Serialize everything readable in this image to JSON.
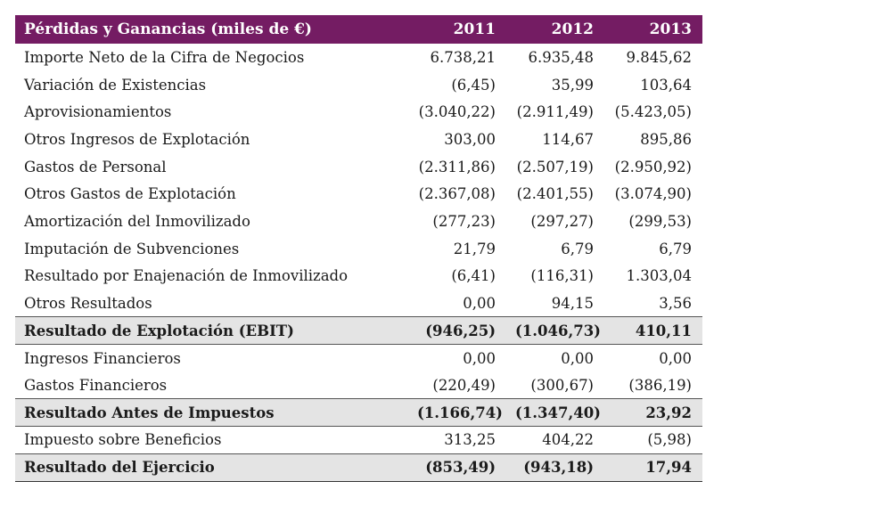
{
  "table": {
    "header": {
      "label": "Pérdidas y Ganancias (miles de €)",
      "years": [
        "2011",
        "2012",
        "2013"
      ]
    },
    "rows": [
      {
        "label": "Importe Neto de la Cifra de Negocios",
        "values": [
          "6.738,21",
          "6.935,48",
          "9.845,62"
        ],
        "total": false
      },
      {
        "label": "Variación de Existencias",
        "values": [
          "(6,45)",
          "35,99",
          "103,64"
        ],
        "total": false
      },
      {
        "label": "Aprovisionamientos",
        "values": [
          "(3.040,22)",
          "(2.911,49)",
          "(5.423,05)"
        ],
        "total": false
      },
      {
        "label": "Otros Ingresos de Explotación",
        "values": [
          "303,00",
          "114,67",
          "895,86"
        ],
        "total": false
      },
      {
        "label": "Gastos de Personal",
        "values": [
          "(2.311,86)",
          "(2.507,19)",
          "(2.950,92)"
        ],
        "total": false
      },
      {
        "label": "Otros Gastos de Explotación",
        "values": [
          "(2.367,08)",
          "(2.401,55)",
          "(3.074,90)"
        ],
        "total": false
      },
      {
        "label": "Amortización del Inmovilizado",
        "values": [
          "(277,23)",
          "(297,27)",
          "(299,53)"
        ],
        "total": false
      },
      {
        "label": "Imputación de Subvenciones",
        "values": [
          "21,79",
          "6,79",
          "6,79"
        ],
        "total": false
      },
      {
        "label": "Resultado por Enajenación de Inmovilizado",
        "values": [
          "(6,41)",
          "(116,31)",
          "1.303,04"
        ],
        "total": false
      },
      {
        "label": "Otros Resultados",
        "values": [
          "0,00",
          "94,15",
          "3,56"
        ],
        "total": false
      },
      {
        "label": "Resultado de Explotación (EBIT)",
        "values": [
          "(946,25)",
          "(1.046,73)",
          "410,11"
        ],
        "total": true
      },
      {
        "label": "Ingresos Financieros",
        "values": [
          "0,00",
          "0,00",
          "0,00"
        ],
        "total": false
      },
      {
        "label": "Gastos Financieros",
        "values": [
          "(220,49)",
          "(300,67)",
          "(386,19)"
        ],
        "total": false
      },
      {
        "label": "Resultado Antes de Impuestos",
        "values": [
          "(1.166,74)",
          "(1.347,40)",
          "23,92"
        ],
        "total": true
      },
      {
        "label": "Impuesto sobre Beneficios",
        "values": [
          "313,25",
          "404,22",
          "(5,98)"
        ],
        "total": false
      },
      {
        "label": "Resultado del Ejercicio",
        "values": [
          "(853,49)",
          "(943,18)",
          "17,94"
        ],
        "total": true
      }
    ]
  },
  "colors": {
    "header_bg": "#741c63",
    "header_text": "#ffffff",
    "total_row_bg": "#e4e4e4"
  }
}
